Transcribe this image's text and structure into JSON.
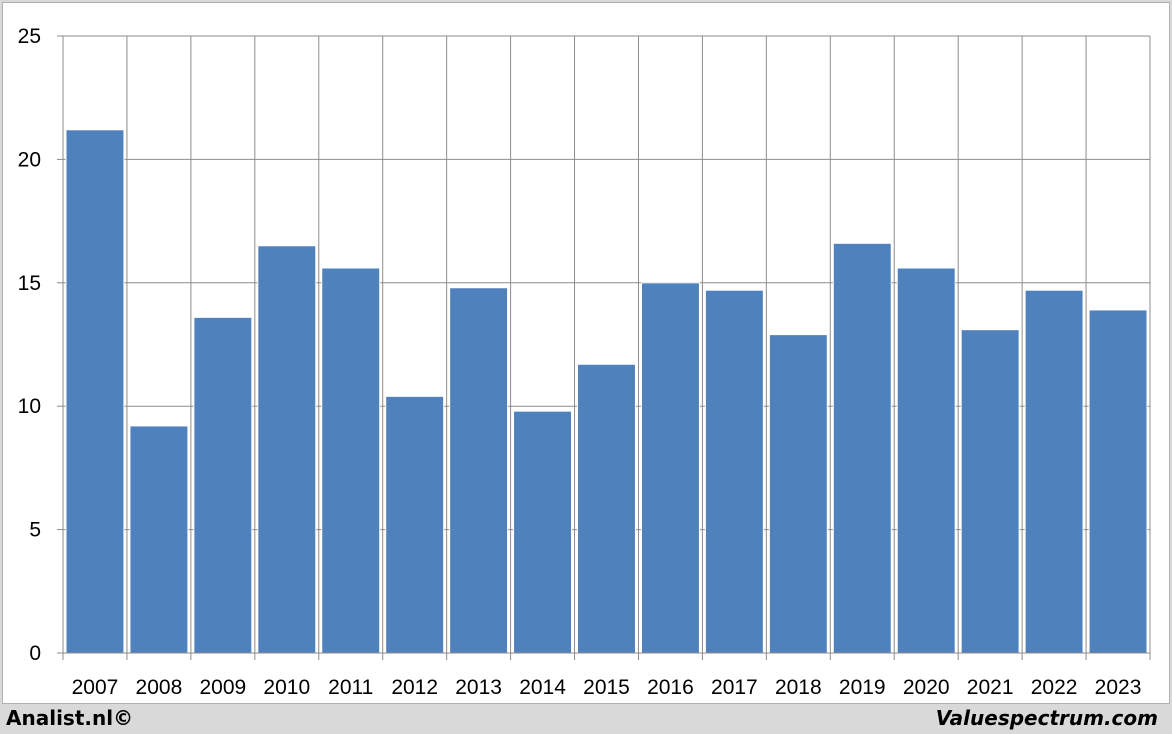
{
  "chart_data": {
    "type": "bar",
    "categories": [
      "2007",
      "2008",
      "2009",
      "2010",
      "2011",
      "2012",
      "2013",
      "2014",
      "2015",
      "2016",
      "2017",
      "2018",
      "2019",
      "2020",
      "2021",
      "2022",
      "2023"
    ],
    "values": [
      21.2,
      9.2,
      13.6,
      16.5,
      15.6,
      10.4,
      14.8,
      9.8,
      11.7,
      15.0,
      14.7,
      12.9,
      16.6,
      15.6,
      13.1,
      14.7,
      13.9
    ],
    "ylim": [
      0,
      25
    ],
    "yticks": [
      0,
      5,
      10,
      15,
      20,
      25
    ],
    "grid": true,
    "bar_color": "#4f81bd"
  },
  "footer": {
    "left": "Analist.nl©",
    "right": "Valuespectrum.com"
  }
}
